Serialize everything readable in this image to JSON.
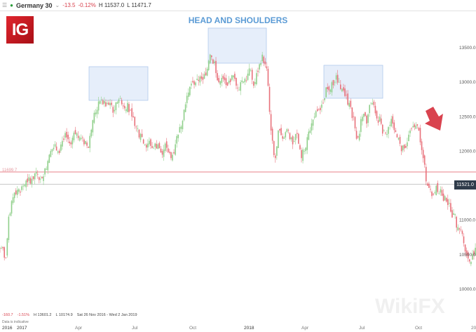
{
  "header": {
    "menu_icon": "hamburger-icon",
    "instrument": "Germany 30",
    "change": "-13.5",
    "change_pct": "-0.12%",
    "high": "H 11537.0",
    "low": "L 11471.7"
  },
  "logo": "IG",
  "footer": {
    "change": "-160.7",
    "change_pct": "-1.51%",
    "high": "H 13601.2",
    "low": "L 10174.9",
    "range": "Sat 26 Nov 2016 - Wed 2 Jan 2019",
    "note": "Data is indicative"
  },
  "watermark": "WikiFX",
  "colors": {
    "up": "#8fcf8a",
    "down": "#e8707a",
    "annotation": "#5b9bd5",
    "resistance": "#e8828a",
    "current": "#c9c9c9",
    "arrow": "#d9434f"
  },
  "chart_data": {
    "type": "candlestick",
    "title": "HEAD AND SHOULDERS",
    "frequency": "weekly (approx.)",
    "x_ticks": [
      "2016",
      "2017",
      "Apr",
      "Jul",
      "Oct",
      "2018",
      "Apr",
      "Jul",
      "Oct",
      "20"
    ],
    "y_ticks": [
      "13500.0",
      "13000.0",
      "12500.0",
      "12000.0",
      "11000.0",
      "10500.0",
      "10000.0"
    ],
    "ylim": [
      10000,
      13500
    ],
    "closes": [
      10600,
      10450,
      11100,
      11400,
      11450,
      11500,
      11550,
      11600,
      11700,
      11600,
      11750,
      11950,
      12050,
      12000,
      12150,
      12200,
      12100,
      12250,
      12200,
      12100,
      12050,
      12450,
      12600,
      12750,
      12650,
      12700,
      12600,
      12750,
      12650,
      12700,
      12500,
      12350,
      12250,
      12100,
      12150,
      12050,
      12100,
      11950,
      12050,
      11900,
      12100,
      12350,
      12600,
      12850,
      13000,
      13050,
      13050,
      13100,
      13400,
      13300,
      13000,
      13050,
      12950,
      13100,
      12950,
      13000,
      13050,
      13200,
      12950,
      13150,
      13400,
      13200,
      12300,
      11900,
      12300,
      12200,
      12300,
      12100,
      12250,
      11900,
      12050,
      12300,
      12500,
      12600,
      12700,
      12900,
      13000,
      13100,
      12900,
      12800,
      12700,
      12500,
      12200,
      12500,
      12400,
      12700,
      12550,
      12500,
      12300,
      12350,
      12400,
      12200,
      12000,
      12050,
      12300,
      12350,
      12300,
      11900,
      11500,
      11350,
      11500,
      11450,
      11350,
      11250,
      11100,
      10900,
      10800,
      10500,
      10400,
      10600
    ],
    "horizontal_lines": [
      {
        "label": "11699.7",
        "value": 11699.7
      },
      {
        "label": "11521.0",
        "value": 11521.0
      }
    ],
    "annotations": [
      "left shoulder",
      "head",
      "right shoulder",
      "down arrow"
    ]
  }
}
